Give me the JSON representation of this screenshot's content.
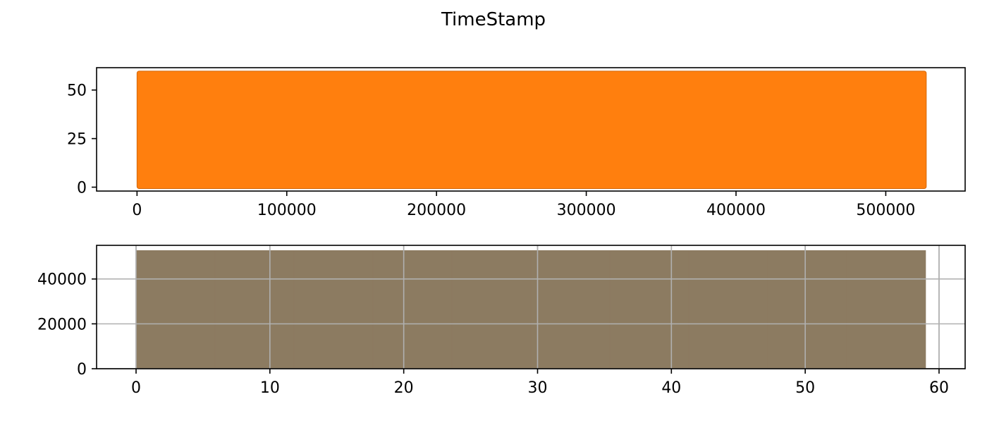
{
  "figure": {
    "title": "TimeStamp"
  },
  "chart_data": [
    {
      "type": "scatter",
      "description_key": "timestamp_by_index",
      "title": "",
      "xlabel": "",
      "ylabel": "",
      "xlim": [
        -27000,
        553000
      ],
      "ylim": [
        -2,
        61.5
      ],
      "xticks": [
        0,
        100000,
        200000,
        300000,
        400000,
        500000
      ],
      "xtick_labels": [
        "0",
        "100000",
        "200000",
        "300000",
        "400000",
        "500000"
      ],
      "yticks": [
        0,
        25,
        50
      ],
      "ytick_labels": [
        "0",
        "25",
        "50"
      ],
      "x_range": [
        0,
        527040
      ],
      "y_range": [
        0,
        59
      ],
      "fill_color": "#ff7f0e",
      "edge_color": "#d4690c",
      "grid": false
    },
    {
      "type": "bar",
      "subtype": "histogram",
      "title": "",
      "xlabel": "",
      "ylabel": "",
      "xlim": [
        -2.95,
        61.95
      ],
      "ylim": [
        0,
        55000
      ],
      "xticks": [
        0,
        10,
        20,
        30,
        40,
        50,
        60
      ],
      "xtick_labels": [
        "0",
        "10",
        "20",
        "30",
        "40",
        "50",
        "60"
      ],
      "yticks": [
        0,
        20000,
        40000
      ],
      "ytick_labels": [
        "0",
        "20000",
        "40000"
      ],
      "bin_range": [
        0,
        59
      ],
      "bins": 10,
      "values": [
        52704,
        52704,
        52704,
        52704,
        52704,
        52704,
        52704,
        52704,
        52704,
        52704
      ],
      "bar_color": "#8c7b61",
      "grid": true
    }
  ]
}
